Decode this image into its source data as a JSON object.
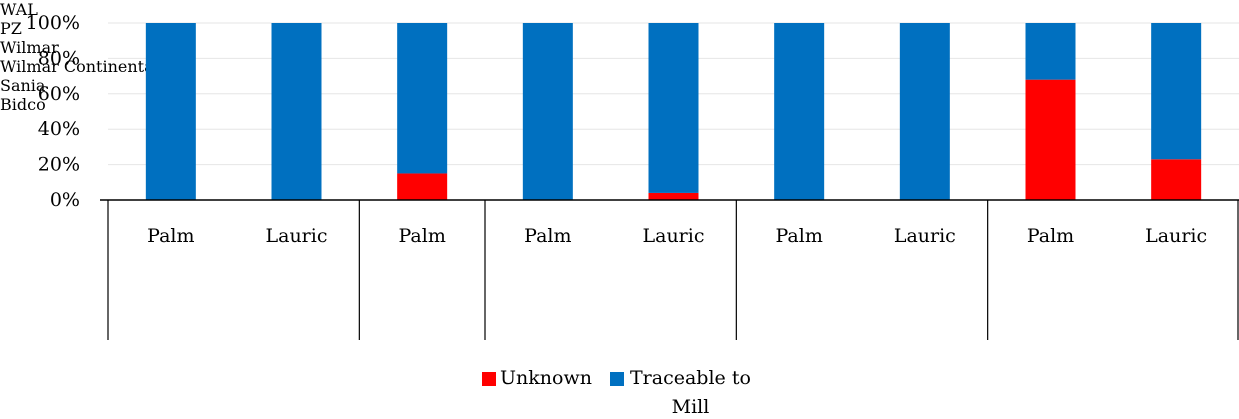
{
  "chart_data": {
    "type": "bar",
    "stacked": true,
    "categories": [
      "Palm",
      "Lauric",
      "Palm",
      "Palm",
      "Lauric",
      "Palm",
      "Lauric",
      "Palm",
      "Lauric"
    ],
    "groups": [
      {
        "name": "WAL",
        "count": 2
      },
      {
        "name": "PZ Wilmar",
        "count": 1
      },
      {
        "name": "Wilmar Continental",
        "count": 2
      },
      {
        "name": "Sania",
        "count": 2
      },
      {
        "name": "Bidco",
        "count": 2
      }
    ],
    "series": [
      {
        "name": "Unknown",
        "color": "#ff0000",
        "values": [
          0,
          0,
          15,
          0,
          4,
          0,
          0,
          68,
          23
        ]
      },
      {
        "name": "Traceable to Mill",
        "color": "#0070c0",
        "values": [
          100,
          100,
          85,
          100,
          96,
          100,
          100,
          32,
          77
        ]
      }
    ],
    "ylim": [
      0,
      100
    ],
    "yticks": [
      {
        "value": 0,
        "label": "0%"
      },
      {
        "value": 20,
        "label": "20%"
      },
      {
        "value": 40,
        "label": "40%"
      },
      {
        "value": 60,
        "label": "60%"
      },
      {
        "value": 80,
        "label": "80%"
      },
      {
        "value": 100,
        "label": "100%"
      }
    ],
    "grid": true,
    "legend": "bottom"
  }
}
